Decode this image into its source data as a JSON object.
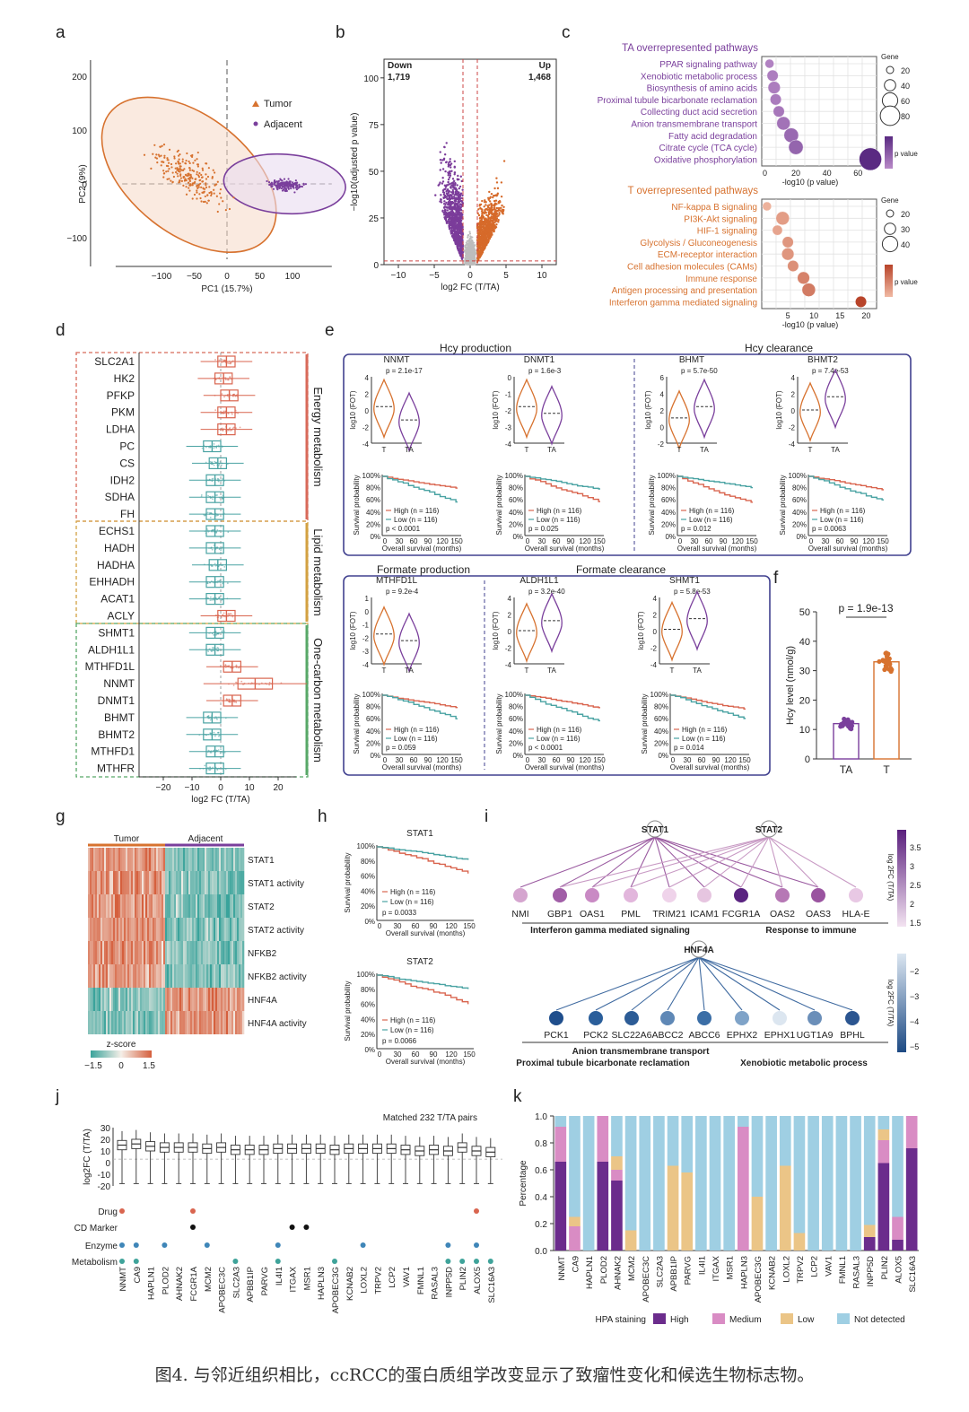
{
  "caption": "图4. 与邻近组织相比，ccRCC的蛋白质组学改变显示了致瘤性变化和候选生物标志物。",
  "panel_letters": [
    "a",
    "b",
    "c",
    "d",
    "e",
    "f",
    "g",
    "h",
    "i",
    "j",
    "k"
  ],
  "colors": {
    "tumor": "#d7722f",
    "adjacent": "#7a3f9c",
    "teal": "#4aa3a3",
    "salmon": "#d9654f",
    "up": "#d66a2a",
    "down": "#7b3c9a",
    "hpa_high": "#6b2c8c",
    "hpa_medium": "#d98cc4",
    "hpa_low": "#ebc587",
    "hpa_none": "#9fcfe3"
  },
  "panel_a": {
    "legend": [
      "Tumor",
      "Adjacent"
    ],
    "xlabel": "PC1 (15.7%)",
    "ylabel": "PC2 (9%)",
    "xticks": [
      "−100",
      "−50",
      "0",
      "50",
      "100"
    ],
    "yticks": [
      "200",
      "100",
      "0",
      "−100"
    ]
  },
  "panel_b": {
    "down_label": "Down",
    "down_count": "1,719",
    "up_label": "Up",
    "up_count": "1,468",
    "xlabel": "log2 FC (T/TA)",
    "ylabel": "−log10(adjusted p value)",
    "xticks": [
      "−10",
      "−5",
      "0",
      "5",
      "10"
    ],
    "yticks": [
      "100",
      "75",
      "50",
      "25",
      "0"
    ]
  },
  "panel_c": {
    "ta_title": "TA overrepresented pathways",
    "ta_pathways": [
      "PPAR signaling pathway",
      "Xenobiotic metabolic process",
      "Biosynthesis of amino acids",
      "Proximal tubule bicarbonate reclamation",
      "Collecting duct acid secretion",
      "Anion transmembrane transport",
      "Fatty acid degradation",
      "Citrate cycle (TCA cycle)",
      "Oxidative phosphorylation"
    ],
    "ta_values": [
      3,
      5,
      6,
      7,
      9,
      12,
      17,
      20,
      68
    ],
    "ta_sizes": [
      20,
      30,
      35,
      30,
      30,
      40,
      45,
      45,
      80
    ],
    "ta_xticks": [
      "0",
      "20",
      "40",
      "60"
    ],
    "ta_xlabel": "-log10 (p value)",
    "ta_gene_title": "Gene",
    "ta_gene_sizes": [
      "20",
      "40",
      "60",
      "80"
    ],
    "ta_pvalue_label": "p value",
    "t_title": "T overrepresented pathways",
    "t_pathways": [
      "NF-kappa B signaling",
      "PI3K-Akt signaling",
      "HIF-1 signaling",
      "Glycolysis / Gluconeogenesis",
      "ECM-receptor interaction",
      "Cell adhesion molecules (CAMs)",
      "Immune response",
      "Antigen processing and presentation",
      "Interferon gamma mediated signaling"
    ],
    "t_values": [
      1,
      4,
      3,
      5,
      5,
      6,
      8,
      9,
      19
    ],
    "t_sizes": [
      20,
      40,
      25,
      30,
      35,
      30,
      35,
      40,
      30
    ],
    "t_xticks": [
      "5",
      "10",
      "15",
      "20"
    ],
    "t_xlabel": "-log10 (p value)",
    "t_gene_title": "Gene",
    "t_gene_sizes": [
      "20",
      "30",
      "40"
    ],
    "t_pvalue_label": "p value"
  },
  "panel_d": {
    "genes": [
      "SLC2A1",
      "HK2",
      "PFKP",
      "PKM",
      "LDHA",
      "PC",
      "CS",
      "IDH2",
      "SDHA",
      "FH",
      "ECHS1",
      "HADH",
      "HADHA",
      "EHHADH",
      "ACAT1",
      "ACLY",
      "SHMT1",
      "ALDH1L1",
      "MTHFD1L",
      "NNMT",
      "DNMT1",
      "BHMT",
      "BHMT2",
      "MTHFD1",
      "MTHFR"
    ],
    "medians": [
      2,
      1,
      3,
      2,
      2,
      -3,
      -1,
      -2,
      -2,
      -2,
      -2,
      -2,
      -1,
      -2,
      -2,
      2,
      -2,
      -2,
      4,
      12,
      4,
      -3,
      -3,
      -2,
      -2
    ],
    "groups": [
      "Energy metabolism",
      "Lipid metabolism",
      "One-carbon metabolism"
    ],
    "xticks": [
      "−20",
      "−10",
      "0",
      "10",
      "20"
    ],
    "xlabel": "log2 FC (T/TA)"
  },
  "panel_e": {
    "hcy_production": "Hcy production",
    "hcy_clearance": "Hcy clearance",
    "formate_production": "Formate production",
    "formate_clearance": "Formate clearance",
    "violin_ylabel": "log10 (FOT)",
    "surv_ylabel": "Survival probability",
    "surv_xlabel": "Overall survival (months)",
    "surv_xticks": [
      "0",
      "30",
      "60",
      "90",
      "120",
      "150"
    ],
    "surv_yticks": [
      "100%",
      "80%",
      "60%",
      "40%",
      "20%",
      "0%"
    ],
    "group_labels": [
      "T",
      "TA"
    ],
    "high_label": "High (n = 116)",
    "low_label": "Low (n = 116)",
    "genes": [
      {
        "name": "NNMT",
        "p_violin": "p = 2.1e-17",
        "p_surv": "p < 0.0001",
        "yticks": [
          "4",
          "2",
          "0",
          "-2",
          "-4"
        ]
      },
      {
        "name": "DNMT1",
        "p_violin": "p = 1.6e-3",
        "p_surv": "p = 0.025",
        "yticks": [
          "0",
          "-1",
          "-2",
          "-3",
          "-4"
        ]
      },
      {
        "name": "BHMT",
        "p_violin": "p = 5.7e-50",
        "p_surv": "p = 0.012",
        "yticks": [
          "6",
          "4",
          "2",
          "0",
          "-2"
        ]
      },
      {
        "name": "BHMT2",
        "p_violin": "p = 7.4e-53",
        "p_surv": "p = 0.0063",
        "yticks": [
          "4",
          "2",
          "0",
          "-2",
          "-4"
        ]
      },
      {
        "name": "MTHFD1L",
        "p_violin": "p = 9.2e-4",
        "p_surv": "p = 0.059",
        "yticks": [
          "1",
          "0",
          "-1",
          "-2",
          "-3",
          "-4"
        ]
      },
      {
        "name": "ALDH1L1",
        "p_violin": "p = 3.2e-40",
        "p_surv": "p < 0.0001",
        "yticks": [
          "4",
          "2",
          "0",
          "-2",
          "-4"
        ]
      },
      {
        "name": "SHMT1",
        "p_violin": "p = 5.8e-53",
        "p_surv": "p = 0.014",
        "yticks": [
          "4",
          "2",
          "0",
          "-2",
          "-4"
        ]
      }
    ]
  },
  "panel_f": {
    "p_label": "p = 1.9e-13",
    "ylabel": "Hcy level (nmol/g)",
    "yticks": [
      "50",
      "40",
      "30",
      "20",
      "10",
      "0"
    ],
    "groups": [
      "TA",
      "T"
    ],
    "means": [
      12,
      33
    ]
  },
  "panel_g": {
    "col_groups": [
      "Tumor",
      "Adjacent"
    ],
    "rows": [
      "STAT1",
      "STAT1 activity",
      "STAT2",
      "STAT2 activity",
      "NFKB2",
      "NFKB2 activity",
      "HNF4A",
      "HNF4A activity"
    ],
    "zscore_label": "z-score",
    "zscore_ticks": [
      "−1.5",
      "0",
      "1.5"
    ]
  },
  "panel_h": {
    "plots": [
      {
        "title": "STAT1",
        "high": "High (n = 116)",
        "low": "Low (n = 116)",
        "p": "p = 0.0033"
      },
      {
        "title": "STAT2",
        "high": "High (n = 116)",
        "low": "Low (n = 116)",
        "p": "p = 0.0066"
      }
    ],
    "ylabel": "Survival probability",
    "xlabel": "Overall survival (months)",
    "xticks": [
      "0",
      "30",
      "60",
      "90",
      "120",
      "150"
    ],
    "yticks": [
      "100%",
      "80%",
      "60%",
      "40%",
      "20%",
      "0%"
    ]
  },
  "panel_i": {
    "hubs_top": [
      "STAT1",
      "STAT2"
    ],
    "targets_top": [
      "NMI",
      "GBP1",
      "OAS1",
      "PML",
      "TRIM21",
      "ICAM1",
      "FCGR1A",
      "OAS2",
      "OAS3",
      "HLA-E"
    ],
    "top_label_1": "Interferon gamma mediated signaling",
    "top_label_2": "Response to immune",
    "hub_bottom": "HNF4A",
    "targets_bottom": [
      "PCK1",
      "PCK2",
      "SLC22A6",
      "ABCC2",
      "ABCC6",
      "EPHX2",
      "EPHX1",
      "UGT1A9",
      "BPHL"
    ],
    "bottom_label_1": "Anion transmembrane transport",
    "bottom_label_2": "Proximal tubule bicarbonate reclamation",
    "bottom_label_3": "Xenobiotic metabolic process",
    "scale_top_ticks": [
      "3.5",
      "3",
      "2.5",
      "2",
      "1.5"
    ],
    "scale_bottom_ticks": [
      "−2",
      "−3",
      "−4",
      "−5"
    ],
    "scale_label": "log 2FC (T/TA)"
  },
  "panel_j": {
    "title": "Matched 232 T/TA pairs",
    "ylabel": "log2FC (T/TA)",
    "yticks": [
      "30",
      "20",
      "10",
      "0",
      "-10",
      "-20"
    ],
    "genes": [
      "NNMT",
      "CA9",
      "HAPLN1",
      "PLOD2",
      "AHNAK2",
      "FCGR1A",
      "MCM2",
      "APOBEC3C",
      "SLC2A3",
      "APBB1IP",
      "PARVG",
      "IL4I1",
      "ITGAX",
      "MSR1",
      "HAPLN3",
      "APOBEC3G",
      "KCNAB2",
      "LOXL2",
      "TRPV2",
      "LCP2",
      "VAV1",
      "FMNL1",
      "RASAL3",
      "INPP5D",
      "PLIN2",
      "ALOX5",
      "SLC16A3"
    ],
    "medians": [
      15,
      16,
      14,
      13,
      13,
      13,
      12,
      13,
      11,
      11,
      11,
      12,
      12,
      12,
      12,
      11,
      12,
      12,
      12,
      12,
      11,
      10,
      11,
      10,
      13,
      10,
      9
    ],
    "rows": [
      "Drug",
      "CD Marker",
      "Enzyme",
      "Metabolism"
    ],
    "drug": [
      0,
      5,
      25
    ],
    "cd_marker": [
      5,
      12,
      13
    ],
    "enzyme": [
      0,
      1,
      3,
      6,
      11,
      17,
      23,
      25
    ],
    "metabolism": [
      0,
      1,
      8,
      11,
      15,
      23,
      24,
      25,
      26
    ]
  },
  "chart_data": [
    {
      "type": "bar",
      "title": "",
      "xlabel": "",
      "ylabel": "Percentage",
      "ylim": [
        0,
        1.0
      ],
      "yticks": [
        "1.0",
        "0.8",
        "0.6",
        "0.4",
        "0.2",
        "0.0"
      ],
      "legend_title": "HPA staining",
      "categories": [
        "NNMT",
        "CA9",
        "HAPLN1",
        "PLOD2",
        "AHNAK2",
        "MCM2",
        "APOBEC3C",
        "SLC2A3",
        "APBB1IP",
        "PARVG",
        "IL4I1",
        "ITGAX",
        "MSR1",
        "HAPLN3",
        "APOBEC3G",
        "KCNAB2",
        "LOXL2",
        "TRPV2",
        "LCP2",
        "VAV1",
        "FMNL1",
        "RASAL3",
        "INPP5D",
        "PLIN2",
        "ALOX5",
        "SLC16A3"
      ],
      "series": [
        {
          "name": "High",
          "values": [
            0.66,
            0.0,
            0.0,
            0.66,
            0.52,
            0.0,
            0.0,
            0.0,
            0.0,
            0.0,
            0.0,
            0.0,
            0.0,
            0.0,
            0.0,
            0.0,
            0.0,
            0.0,
            0.0,
            0.0,
            0.0,
            0.0,
            0.1,
            0.65,
            0.08,
            0.76
          ]
        },
        {
          "name": "Medium",
          "values": [
            0.26,
            0.18,
            0.0,
            0.34,
            0.08,
            0.0,
            0.0,
            0.0,
            0.0,
            0.0,
            0.0,
            0.0,
            0.0,
            0.92,
            0.0,
            0.0,
            0.0,
            0.0,
            0.0,
            0.0,
            0.0,
            0.0,
            0.0,
            0.17,
            0.17,
            0.24
          ]
        },
        {
          "name": "Low",
          "values": [
            0.0,
            0.07,
            0.0,
            0.0,
            0.1,
            0.15,
            0.0,
            0.0,
            0.63,
            0.58,
            0.0,
            0.0,
            0.0,
            0.0,
            0.4,
            0.0,
            0.63,
            0.13,
            0.0,
            0.0,
            0.0,
            0.0,
            0.09,
            0.08,
            0.0,
            0.0
          ]
        },
        {
          "name": "Not detected",
          "values": [
            0.08,
            0.75,
            1.0,
            0.0,
            0.3,
            0.85,
            1.0,
            1.0,
            0.37,
            0.42,
            1.0,
            1.0,
            1.0,
            0.08,
            0.6,
            1.0,
            0.37,
            0.87,
            1.0,
            1.0,
            1.0,
            1.0,
            0.81,
            0.1,
            0.75,
            0.0
          ]
        }
      ]
    }
  ]
}
